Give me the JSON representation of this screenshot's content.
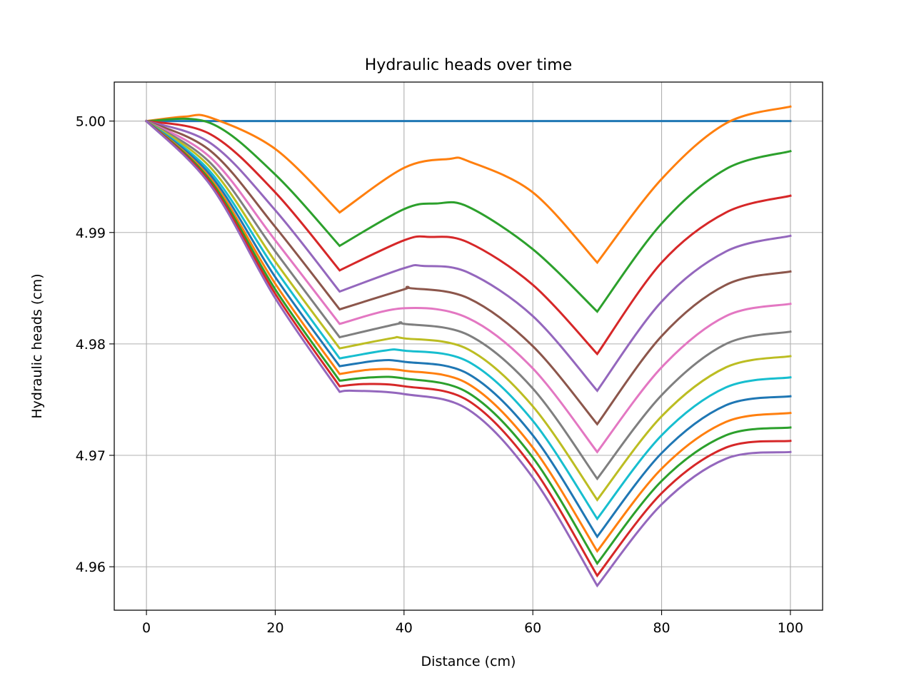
{
  "chart_data": {
    "type": "line",
    "title": "Hydraulic heads over time",
    "xlabel": "Distance (cm)",
    "ylabel": "Hydraulic heads (cm)",
    "xlim": [
      -5,
      105
    ],
    "ylim": [
      4.9561,
      5.0035
    ],
    "xticks": [
      0,
      20,
      40,
      60,
      80,
      100
    ],
    "xtick_labels": [
      "0",
      "20",
      "40",
      "60",
      "80",
      "100"
    ],
    "yticks": [
      4.96,
      4.97,
      4.98,
      4.99,
      5.0
    ],
    "ytick_labels": [
      "4.96",
      "4.97",
      "4.98",
      "4.99",
      "5.00"
    ],
    "grid": true,
    "legend": "none",
    "colors": [
      "#1f77b4",
      "#ff7f0e",
      "#2ca02c",
      "#d62728",
      "#9467bd",
      "#8c564b",
      "#e377c2",
      "#7f7f7f",
      "#bcbd22",
      "#17becf"
    ],
    "series": [
      {
        "x": [
          0,
          10,
          20,
          30,
          40,
          50,
          60,
          70,
          80,
          90,
          100
        ],
        "y": [
          5.0,
          5.0,
          5.0,
          5.0,
          5.0,
          5.0,
          5.0,
          5.0,
          5.0,
          5.0,
          5.0
        ]
      },
      {
        "x": [
          0,
          6,
          10,
          20,
          30,
          40,
          47,
          50,
          60,
          70,
          80,
          90,
          100
        ],
        "y": [
          5.0,
          5.0004,
          5.0003,
          4.9975,
          4.9918,
          4.9958,
          4.9966,
          4.9964,
          4.9936,
          4.9873,
          4.9948,
          4.9998,
          5.0013
        ]
      },
      {
        "x": [
          0,
          10,
          20,
          30,
          40,
          45,
          50,
          60,
          70,
          80,
          90,
          100
        ],
        "y": [
          5.0,
          4.9998,
          4.9952,
          4.9888,
          4.9921,
          4.9926,
          4.9923,
          4.9885,
          4.9829,
          4.9908,
          4.9957,
          4.9973
        ]
      },
      {
        "x": [
          0,
          10,
          20,
          30,
          40,
          44,
          50,
          60,
          70,
          80,
          90,
          100
        ],
        "y": [
          5.0,
          4.9988,
          4.9936,
          4.9866,
          4.9893,
          4.9896,
          4.9891,
          4.9853,
          4.9791,
          4.9873,
          4.9918,
          4.9933
        ]
      },
      {
        "x": [
          0,
          10,
          20,
          30,
          40,
          43,
          50,
          60,
          70,
          80,
          90,
          100
        ],
        "y": [
          5.0,
          4.998,
          4.992,
          4.9847,
          4.9868,
          4.987,
          4.9864,
          4.9825,
          4.9758,
          4.9838,
          4.9883,
          4.9897
        ]
      },
      {
        "x": [
          0,
          10,
          20,
          30,
          40,
          41,
          50,
          60,
          70,
          80,
          90,
          100
        ],
        "y": [
          5.0,
          4.9973,
          4.9905,
          4.9831,
          4.9849,
          4.985,
          4.9841,
          4.9798,
          4.9728,
          4.9807,
          4.9853,
          4.9865
        ]
      },
      {
        "x": [
          0,
          10,
          20,
          30,
          40,
          50,
          60,
          70,
          80,
          90,
          100
        ],
        "y": [
          5.0,
          4.9967,
          4.9893,
          4.9818,
          4.9832,
          4.9823,
          4.9778,
          4.9703,
          4.9779,
          4.9825,
          4.9836
        ]
      },
      {
        "x": [
          0,
          10,
          20,
          30,
          39,
          40,
          50,
          60,
          70,
          80,
          90,
          100
        ],
        "y": [
          5.0,
          4.9962,
          4.9883,
          4.9806,
          4.9818,
          4.9818,
          4.9808,
          4.976,
          4.9679,
          4.9754,
          4.98,
          4.9811
        ]
      },
      {
        "x": [
          0,
          10,
          20,
          30,
          38,
          40,
          50,
          60,
          70,
          80,
          90,
          100
        ],
        "y": [
          5.0,
          4.9958,
          4.9874,
          4.9796,
          4.9805,
          4.9805,
          4.9795,
          4.9744,
          4.966,
          4.9735,
          4.9779,
          4.9789
        ]
      },
      {
        "x": [
          0,
          10,
          20,
          30,
          37,
          40,
          50,
          60,
          70,
          80,
          90,
          100
        ],
        "y": [
          5.0,
          4.9954,
          4.9867,
          4.9787,
          4.9794,
          4.9794,
          4.9784,
          4.9731,
          4.9643,
          4.9718,
          4.9761,
          4.977
        ]
      },
      {
        "x": [
          0,
          10,
          20,
          30,
          36,
          40,
          50,
          60,
          70,
          80,
          90,
          100
        ],
        "y": [
          5.0,
          4.9951,
          4.986,
          4.978,
          4.9785,
          4.9784,
          4.9773,
          4.9718,
          4.9627,
          4.9702,
          4.9745,
          4.9753
        ]
      },
      {
        "x": [
          0,
          10,
          20,
          30,
          35,
          40,
          50,
          60,
          70,
          80,
          90,
          100
        ],
        "y": [
          5.0,
          4.9948,
          4.9854,
          4.9773,
          4.9777,
          4.9776,
          4.9764,
          4.9707,
          4.9614,
          4.9688,
          4.973,
          4.9738
        ]
      },
      {
        "x": [
          0,
          10,
          20,
          30,
          35,
          40,
          50,
          60,
          70,
          80,
          90,
          100
        ],
        "y": [
          5.0,
          4.9946,
          4.9849,
          4.9767,
          4.977,
          4.9769,
          4.9756,
          4.9698,
          4.9603,
          4.9677,
          4.9718,
          4.9725
        ]
      },
      {
        "x": [
          0,
          10,
          20,
          30,
          34,
          40,
          50,
          60,
          70,
          80,
          90,
          100
        ],
        "y": [
          5.0,
          4.9944,
          4.9845,
          4.9762,
          4.9764,
          4.9762,
          4.9749,
          4.9689,
          4.9592,
          4.9666,
          4.9707,
          4.9713
        ]
      },
      {
        "x": [
          0,
          10,
          20,
          30,
          32,
          40,
          50,
          60,
          70,
          80,
          90,
          100
        ],
        "y": [
          5.0,
          4.9942,
          4.9841,
          4.9757,
          4.9758,
          4.9755,
          4.9741,
          4.968,
          4.9583,
          4.9656,
          4.9697,
          4.9703
        ]
      }
    ]
  }
}
